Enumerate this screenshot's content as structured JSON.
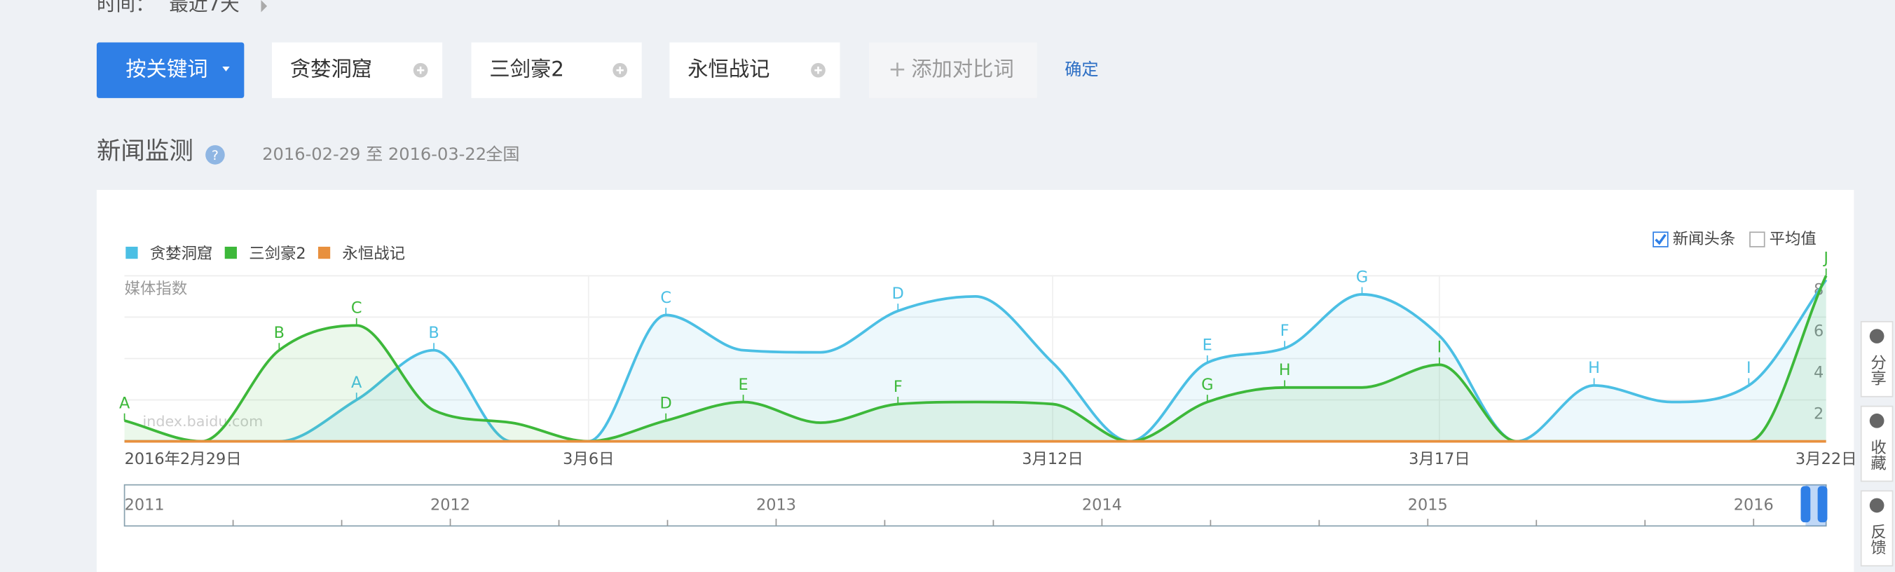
{
  "filter": {
    "label": "时间：",
    "value": "最近7天"
  },
  "mode_button": "按关键词",
  "keywords": [
    "贪婪洞窟",
    "三剑豪2",
    "永恒战记"
  ],
  "add_keyword": "添加对比词",
  "confirm": "确定",
  "section": {
    "title": "新闻监测",
    "date_range": "2016-02-29 至 2016-03-22",
    "region": "全国"
  },
  "options": [
    {
      "label": "新闻头条",
      "checked": true
    },
    {
      "label": "平均值",
      "checked": false
    }
  ],
  "chart_data": {
    "type": "line",
    "ylabel": "媒体指数",
    "watermark": "index.baidu.com",
    "categories": [
      "2016年2月29日",
      null,
      null,
      null,
      null,
      null,
      "3月6日",
      null,
      null,
      null,
      null,
      null,
      "3月12日",
      null,
      null,
      null,
      null,
      "3月17日",
      null,
      null,
      null,
      null,
      "3月22日"
    ],
    "series": [
      {
        "name": "贪婪洞窟",
        "color": "#4bbfe4",
        "values": [
          0,
          0,
          0,
          2.0,
          4.4,
          0,
          0,
          6.1,
          4.4,
          4.3,
          6.3,
          7.0,
          3.8,
          0,
          3.8,
          4.5,
          7.1,
          5.1,
          0,
          2.7,
          1.9,
          2.7,
          7.8
        ],
        "markers": [
          null,
          null,
          null,
          "A",
          "B",
          null,
          null,
          "C",
          null,
          null,
          "D",
          null,
          null,
          null,
          "E",
          "F",
          "G",
          null,
          null,
          "H",
          null,
          "I",
          null
        ]
      },
      {
        "name": "三剑豪2",
        "color": "#3db83a",
        "values": [
          1.0,
          0,
          4.4,
          5.6,
          1.5,
          0.9,
          0,
          1.0,
          1.9,
          0.9,
          1.8,
          1.9,
          1.8,
          0,
          1.9,
          2.6,
          2.6,
          3.7,
          0,
          0,
          0,
          0,
          8.0
        ],
        "markers": [
          "A",
          null,
          "B",
          "C",
          null,
          null,
          null,
          "D",
          "E",
          null,
          "F",
          null,
          null,
          null,
          "G",
          "H",
          null,
          "I",
          null,
          null,
          null,
          null,
          "J"
        ]
      },
      {
        "name": "永恒战记",
        "color": "#e8903e",
        "values": [
          0,
          0,
          0,
          0,
          0,
          0,
          0,
          0,
          0,
          0,
          0,
          0,
          0,
          0,
          0,
          0,
          0,
          0,
          0,
          0,
          0,
          0,
          0
        ]
      }
    ],
    "ylim": [
      0,
      8
    ],
    "yticks": [
      2,
      4,
      6,
      8
    ],
    "grid": true
  },
  "timeline": {
    "labels": [
      "2011",
      "2012",
      "2013",
      "2014",
      "2015",
      "2016"
    ]
  },
  "sidebar": [
    "分享",
    "收藏",
    "反馈"
  ]
}
